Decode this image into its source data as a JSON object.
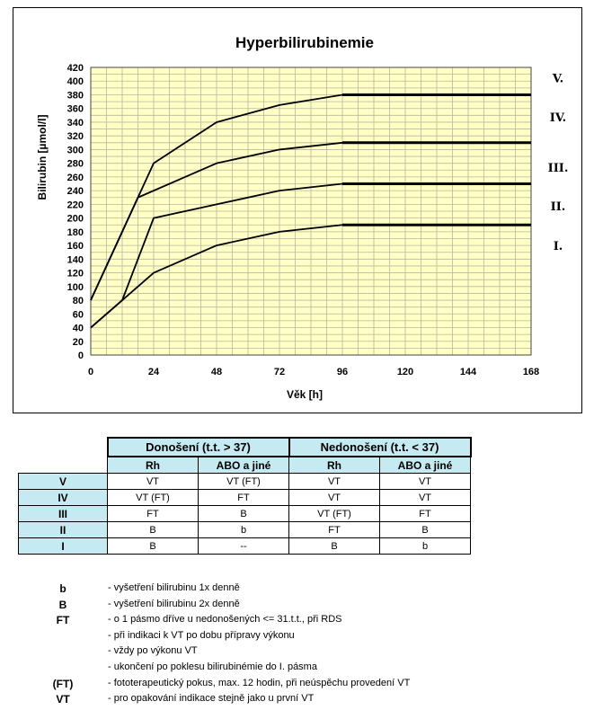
{
  "chart_data": {
    "type": "line",
    "title": "Hyperbilirubinemie",
    "xlabel": "Věk [h]",
    "ylabel": "Bilirubin [µmol/l]",
    "xlim": [
      0,
      168
    ],
    "ylim": [
      0,
      420
    ],
    "xticks": [
      "0",
      "24",
      "48",
      "72",
      "96",
      "120",
      "144",
      "168"
    ],
    "yticks": [
      "0",
      "20",
      "40",
      "60",
      "80",
      "100",
      "120",
      "140",
      "160",
      "180",
      "200",
      "220",
      "240",
      "260",
      "280",
      "300",
      "320",
      "340",
      "360",
      "380",
      "400",
      "420"
    ],
    "grid": true,
    "background": "#ffffc6",
    "gridColor": "#b8b8a0",
    "series": [
      {
        "x": [
          0,
          24,
          48,
          72,
          96,
          168
        ],
        "y": [
          40,
          120,
          160,
          180,
          190,
          190
        ]
      },
      {
        "x": [
          0,
          12,
          24,
          48,
          72,
          96,
          168
        ],
        "y": [
          40,
          80,
          200,
          220,
          240,
          250,
          250
        ]
      },
      {
        "x": [
          0,
          12,
          18,
          48,
          72,
          96,
          168
        ],
        "y": [
          80,
          180,
          230,
          280,
          300,
          310,
          310
        ]
      },
      {
        "x": [
          0,
          18,
          24,
          48,
          72,
          96,
          168
        ],
        "y": [
          80,
          230,
          280,
          340,
          365,
          380,
          380
        ]
      }
    ],
    "zone_labels": [
      {
        "text": "V.",
        "y": 405
      },
      {
        "text": "IV.",
        "y": 348
      },
      {
        "text": "III.",
        "y": 274
      },
      {
        "text": "II.",
        "y": 218
      },
      {
        "text": "I.",
        "y": 160
      }
    ]
  },
  "table": {
    "group1": "Donošení (t.t. > 37)",
    "group2": "Nedonošení (t.t. < 37)",
    "subheaders": [
      "Rh",
      "ABO a jiné",
      "Rh",
      "ABO a jiné"
    ],
    "rows": [
      {
        "label": "V",
        "cells": [
          "VT",
          "VT (FT)",
          "VT",
          "VT"
        ]
      },
      {
        "label": "IV",
        "cells": [
          "VT (FT)",
          "FT",
          "VT",
          "VT"
        ]
      },
      {
        "label": "III",
        "cells": [
          "FT",
          "B",
          "VT (FT)",
          "FT"
        ]
      },
      {
        "label": "II",
        "cells": [
          "B",
          "b",
          "FT",
          "B"
        ]
      },
      {
        "label": "I",
        "cells": [
          "B",
          "--",
          "B",
          "b"
        ]
      }
    ]
  },
  "legend": [
    {
      "key": "b",
      "text": "- vyšetření bilirubinu 1x denně"
    },
    {
      "key": "B",
      "text": "- vyšetření bilirubinu 2x denně"
    },
    {
      "key": "FT",
      "text": "- o 1 pásmo dříve u nedonošených <= 31.t.t., při RDS"
    },
    {
      "key": "",
      "text": "- při indikaci k VT po dobu přípravy výkonu"
    },
    {
      "key": "",
      "text": "- vždy po výkonu VT"
    },
    {
      "key": "",
      "text": "- ukončení po poklesu bilirubinémie do I. pásma"
    },
    {
      "key": "(FT)",
      "text": "- fototerapeutický pokus, max. 12 hodin, při neúspěchu provedení VT"
    },
    {
      "key": "VT",
      "text": "- pro opakování indikace stejně jako u první VT"
    }
  ]
}
